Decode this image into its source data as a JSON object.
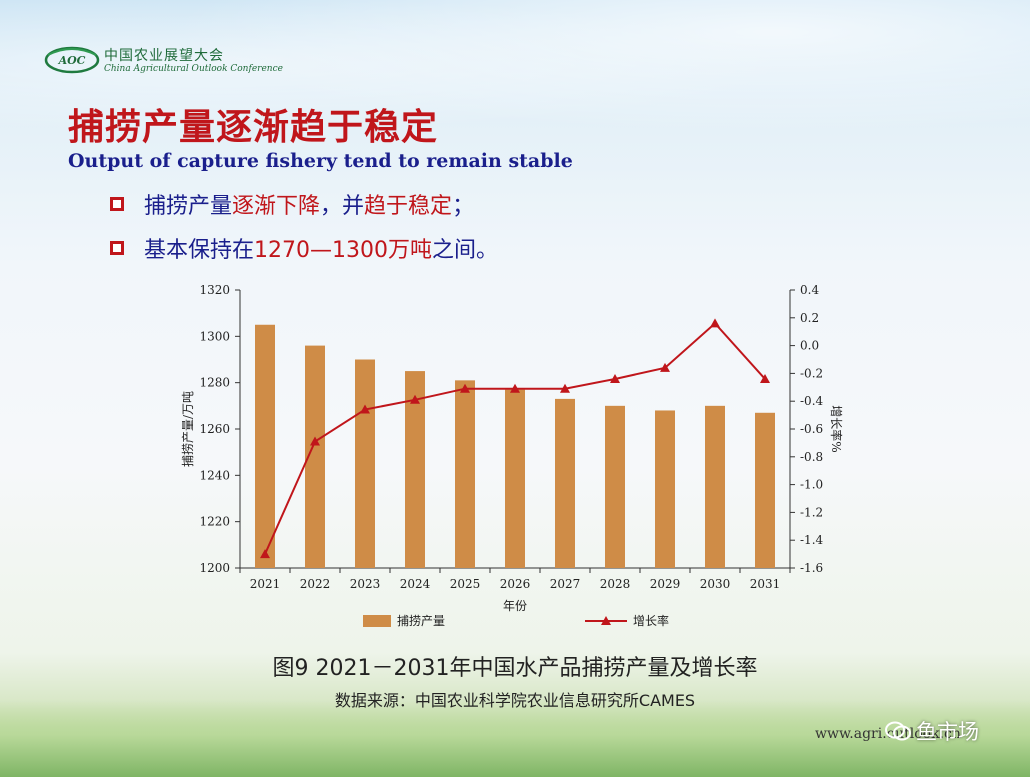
{
  "header": {
    "logo_abbr": "AOC",
    "logo_cn": "中国农业展望大会",
    "logo_en": "China Agricultural Outlook Conference"
  },
  "title": {
    "cn": "捕捞产量逐渐趋于稳定",
    "en": "Output of capture fishery tend to remain stable"
  },
  "bullets": [
    {
      "parts": [
        "捕捞产量",
        "逐渐下降",
        "，并",
        "趋于稳定",
        "；"
      ]
    },
    {
      "parts": [
        "基本保持在",
        "1270—1300万吨",
        "之间。"
      ]
    }
  ],
  "colors": {
    "bar": "#cf8c47",
    "line": "#c0161b",
    "title": "#c0161b",
    "bullet_text": "#1a1f8c"
  },
  "chart_data": {
    "type": "bar",
    "categories": [
      "2021",
      "2022",
      "2023",
      "2024",
      "2025",
      "2026",
      "2027",
      "2028",
      "2029",
      "2030",
      "2031"
    ],
    "series": [
      {
        "name": "捕捞产量",
        "type": "bar",
        "axis": "left",
        "values": [
          1305,
          1296,
          1290,
          1285,
          1281,
          1277,
          1273,
          1270,
          1268,
          1270,
          1267
        ]
      },
      {
        "name": "增长率",
        "type": "line",
        "axis": "right",
        "values": [
          -1.5,
          -0.69,
          -0.46,
          -0.39,
          -0.31,
          -0.31,
          -0.31,
          -0.24,
          -0.16,
          0.16,
          -0.24
        ]
      }
    ],
    "xlabel": "年份",
    "ylabel": "捕捞产量/万吨",
    "y2label": "增长率%",
    "ylim": [
      1200,
      1320
    ],
    "yticks": [
      1200,
      1220,
      1240,
      1260,
      1280,
      1300,
      1320
    ],
    "y2lim": [
      -1.6,
      0.4
    ],
    "y2ticks": [
      "0.4",
      "0.2",
      "0.0",
      "-0.2",
      "-0.4",
      "-0.6",
      "-0.8",
      "-1.0",
      "-1.2",
      "-1.4",
      "-1.6"
    ],
    "grid": false,
    "legend_position": "bottom"
  },
  "caption": "图9   2021－2031年中国水产品捕捞产量及增长率",
  "source": "数据来源：中国农业科学院农业信息研究所CAMES",
  "footer": {
    "url": "www.agri.outlook.cn",
    "watermark": "鱼市场"
  }
}
